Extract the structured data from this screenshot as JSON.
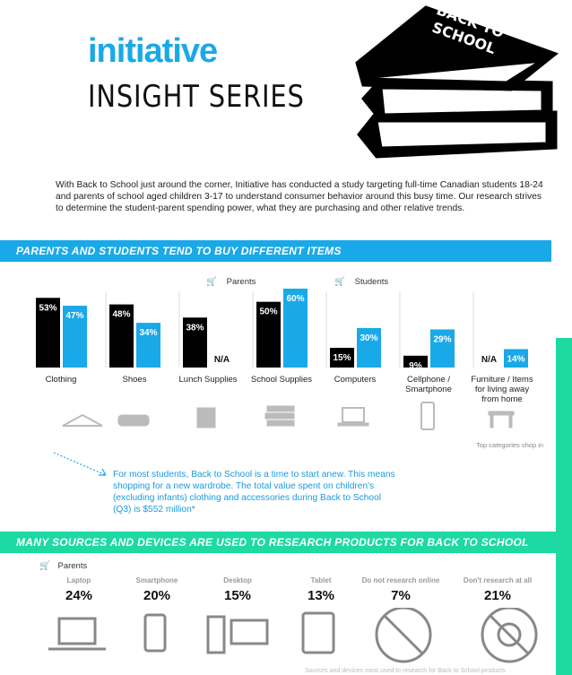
{
  "brand": {
    "logo": "initiative",
    "series": "INSIGHT SERIES"
  },
  "hero": {
    "books_label_line1": "BACK TO",
    "books_label_line2": "SCHOOL"
  },
  "intro": "With Back to School just around the corner, Initiative has conducted a study targeting full-time Canadian students 18-24 and parents of school aged children 3-17 to understand consumer behavior around this busy time. Our research strives to determine the student-parent spending power, what they are purchasing and other relative trends.",
  "section1": {
    "title": "PARENTS AND STUDENTS TEND TO BUY DIFFERENT ITEMS",
    "legend_parents": "Parents",
    "legend_students": "Students",
    "footnote": "Top categories shop in",
    "note": "For most students, Back to School is a time to start anew. This means shopping for a new wardrobe. The total value spent on children's (excluding infants) clothing and accessories during Back to School (Q3) is $552 million*"
  },
  "section2": {
    "title": "MANY SOURCES AND DEVICES ARE USED TO RESEARCH PRODUCTS FOR BACK TO SCHOOL",
    "legend_parents": "Parents",
    "footnote": "Sources and devices most used to research for Back to School products",
    "devices": [
      {
        "label": "Laptop",
        "pct": "24%"
      },
      {
        "label": "Smartphone",
        "pct": "20%"
      },
      {
        "label": "Desktop",
        "pct": "15%"
      },
      {
        "label": "Tablet",
        "pct": "13%"
      },
      {
        "label": "Do not research online",
        "pct": "7%"
      },
      {
        "label": "Don't research at all",
        "pct": "21%"
      }
    ]
  },
  "colors": {
    "accent": "#1aa9e8",
    "parents": "#000000",
    "students": "#1aa9e8",
    "green": "#1dd9a2"
  },
  "chart_data": {
    "type": "bar",
    "categories": [
      "Clothing",
      "Shoes",
      "Lunch Supplies",
      "School Supplies",
      "Computers",
      "Cellphone / Smartphone",
      "Furniture / Items for living away from home"
    ],
    "category_lines": [
      [
        "Clothing"
      ],
      [
        "Shoes"
      ],
      [
        "Lunch Supplies"
      ],
      [
        "School Supplies"
      ],
      [
        "Computers"
      ],
      [
        "Cellphone /",
        "Smartphone"
      ],
      [
        "Furniture / Items",
        "for living away",
        "from home"
      ]
    ],
    "series": [
      {
        "name": "Parents",
        "values": [
          53,
          48,
          38,
          50,
          15,
          9,
          null
        ],
        "labels": [
          "53%",
          "48%",
          "38%",
          "50%",
          "15%",
          "9%",
          "N/A"
        ]
      },
      {
        "name": "Students",
        "values": [
          47,
          34,
          null,
          60,
          30,
          29,
          14
        ],
        "labels": [
          "47%",
          "34%",
          "N/A",
          "60%",
          "30%",
          "29%",
          "14%"
        ]
      }
    ],
    "ylim": [
      0,
      60
    ]
  }
}
